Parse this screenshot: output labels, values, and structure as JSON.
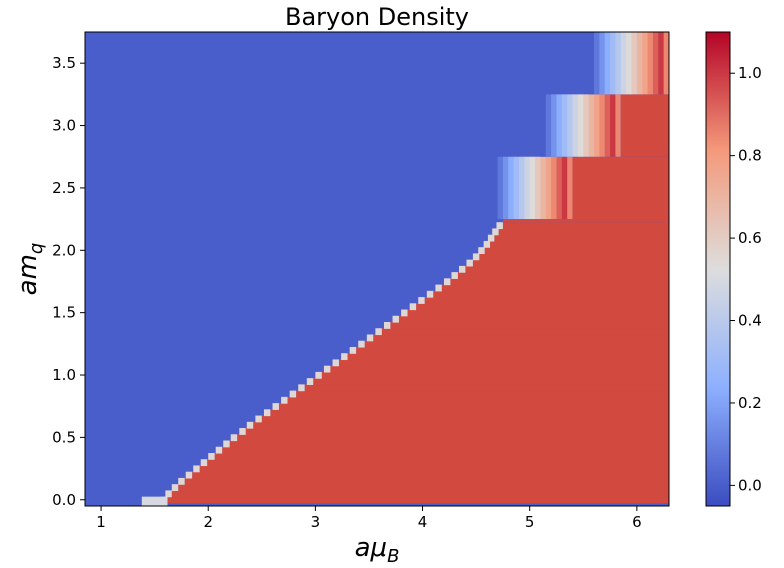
{
  "chart_data": {
    "type": "heatmap",
    "title": "Baryon Density",
    "xlabel": {
      "main": "aμ",
      "sub": "B"
    },
    "ylabel": {
      "main": "am",
      "sub": "q"
    },
    "xlim": [
      0.85,
      6.3
    ],
    "ylim": [
      -0.05,
      3.75
    ],
    "xticks": [
      1,
      2,
      3,
      4,
      5,
      6
    ],
    "xtick_labels": [
      "1",
      "2",
      "3",
      "4",
      "5",
      "6"
    ],
    "yticks": [
      0.0,
      0.5,
      1.0,
      1.5,
      2.0,
      2.5,
      3.0,
      3.5
    ],
    "ytick_labels": [
      "0.0",
      "0.5",
      "1.0",
      "1.5",
      "2.0",
      "2.5",
      "3.0",
      "3.5"
    ],
    "colormap": "coolwarm",
    "color_range": [
      -0.05,
      1.1
    ],
    "colorbar_ticks": [
      0.0,
      0.2,
      0.4,
      0.6,
      0.8,
      1.0
    ],
    "colorbar_tick_labels": [
      "0.0",
      "0.2",
      "0.4",
      "0.6",
      "0.8",
      "1.0"
    ],
    "colors": {
      "low": "#3b4cc0",
      "mid": "#dddddd",
      "high": "#b40426",
      "saturated": "#d1493f"
    },
    "onset_curve": {
      "description_points_am_q": [
        0.0,
        0.05,
        0.1,
        0.15,
        0.2,
        0.25,
        0.3,
        0.35,
        0.4,
        0.45,
        0.5,
        0.55,
        0.6,
        0.65,
        0.7,
        0.75,
        0.8,
        0.85,
        0.9,
        0.95,
        1.0,
        1.05,
        1.1,
        1.15,
        1.2,
        1.25,
        1.3,
        1.35,
        1.4,
        1.45,
        1.5,
        1.55,
        1.6,
        1.65,
        1.7,
        1.75,
        1.8,
        1.85,
        1.9,
        1.95,
        2.0,
        2.05,
        2.1,
        2.15,
        2.2
      ],
      "mu_b_onset": [
        1.62,
        1.66,
        1.72,
        1.78,
        1.85,
        1.92,
        1.99,
        2.06,
        2.13,
        2.2,
        2.27,
        2.35,
        2.42,
        2.5,
        2.58,
        2.66,
        2.74,
        2.82,
        2.9,
        2.98,
        3.06,
        3.14,
        3.22,
        3.3,
        3.38,
        3.46,
        3.54,
        3.62,
        3.7,
        3.78,
        3.86,
        3.94,
        4.02,
        4.1,
        4.18,
        4.26,
        4.33,
        4.4,
        4.47,
        4.53,
        4.58,
        4.63,
        4.67,
        4.71,
        4.75
      ]
    },
    "plateaus": [
      {
        "am_q_range": [
          2.25,
          2.75
        ],
        "mu_b_step": 5.1,
        "mu_b_end": 5.4
      },
      {
        "am_q_range": [
          2.75,
          3.25
        ],
        "mu_b_step": 5.55,
        "mu_b_end": 5.85
      },
      {
        "am_q_range": [
          3.25,
          3.75
        ],
        "mu_b_step": 6.0,
        "mu_b_end": 6.3
      }
    ]
  }
}
